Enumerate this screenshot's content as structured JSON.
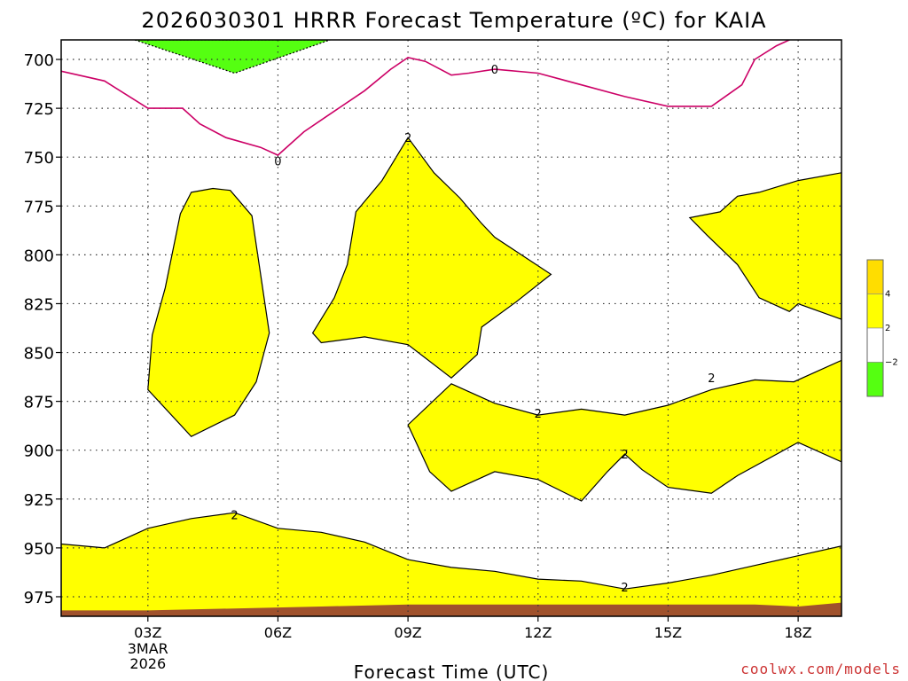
{
  "chart_data": {
    "type": "contour",
    "title": "2026030301 HRRR Forecast Temperature (ºC) for KAIA",
    "xlabel": "Forecast Time (UTC)",
    "watermark": "coolwx.com/models",
    "x_range": [
      1,
      19
    ],
    "y_range": [
      690,
      985
    ],
    "x_ticks": [
      {
        "x": 3,
        "label": "03Z",
        "sub": [
          "3MAR",
          "2026"
        ]
      },
      {
        "x": 6,
        "label": "06Z"
      },
      {
        "x": 9,
        "label": "09Z"
      },
      {
        "x": 12,
        "label": "12Z"
      },
      {
        "x": 15,
        "label": "15Z"
      },
      {
        "x": 18,
        "label": "18Z"
      }
    ],
    "y_ticks": [
      700,
      725,
      750,
      775,
      800,
      825,
      850,
      875,
      900,
      925,
      950,
      975
    ],
    "colors": {
      "cold": "#55ff11",
      "warm": "#ffff00",
      "hot": "#ffdd00",
      "ground": "#a0522d",
      "zero_line": "#cc0066"
    },
    "legend": [
      {
        "color": "#ffdd00",
        "label": "4"
      },
      {
        "color": "#ffff00",
        "label": "2"
      },
      {
        "color": "#ffffff",
        "label": "−2"
      },
      {
        "color": "#55ff11",
        "label": ""
      }
    ],
    "regions": [
      {
        "name": "cold-region",
        "color": "cold",
        "dashed": true,
        "points": [
          [
            2.7,
            690
          ],
          [
            5.0,
            707
          ],
          [
            7.2,
            690
          ]
        ]
      },
      {
        "name": "warm-blob-a",
        "color": "warm",
        "points": [
          [
            4.0,
            768
          ],
          [
            4.5,
            766
          ],
          [
            4.9,
            767
          ],
          [
            5.4,
            780
          ],
          [
            5.6,
            810
          ],
          [
            5.8,
            840
          ],
          [
            5.5,
            865
          ],
          [
            5.0,
            882
          ],
          [
            4.0,
            893
          ],
          [
            3.0,
            869
          ],
          [
            3.1,
            841
          ],
          [
            3.4,
            817
          ],
          [
            3.75,
            779
          ]
        ]
      },
      {
        "name": "warm-blob-b",
        "color": "warm",
        "points": [
          [
            9.0,
            740
          ],
          [
            9.6,
            758
          ],
          [
            10.2,
            771
          ],
          [
            10.7,
            784
          ],
          [
            11.0,
            791
          ],
          [
            12.3,
            810
          ],
          [
            11.5,
            824
          ],
          [
            10.7,
            837
          ],
          [
            10.6,
            851
          ],
          [
            10.0,
            863
          ],
          [
            9.0,
            846
          ],
          [
            8.0,
            842
          ],
          [
            7.0,
            845
          ],
          [
            6.8,
            840
          ],
          [
            7.3,
            822
          ],
          [
            7.6,
            805
          ],
          [
            7.8,
            778
          ],
          [
            8.4,
            762
          ]
        ]
      },
      {
        "name": "warm-blob-c",
        "color": "warm",
        "points": [
          [
            19,
            758
          ],
          [
            18.0,
            762
          ],
          [
            17.1,
            768
          ],
          [
            16.6,
            770
          ],
          [
            16.2,
            778
          ],
          [
            15.5,
            781
          ],
          [
            15.9,
            790
          ],
          [
            16.6,
            805
          ],
          [
            17.1,
            822
          ],
          [
            17.8,
            829
          ],
          [
            18.0,
            825
          ],
          [
            19,
            833
          ]
        ]
      },
      {
        "name": "warm-band-d",
        "color": "warm",
        "points": [
          [
            10.0,
            866
          ],
          [
            11.0,
            876
          ],
          [
            12.0,
            882
          ],
          [
            13.0,
            879
          ],
          [
            14.0,
            882
          ],
          [
            15.0,
            877
          ],
          [
            16.0,
            869
          ],
          [
            17.0,
            864
          ],
          [
            17.9,
            865
          ],
          [
            19,
            854
          ],
          [
            19,
            906
          ],
          [
            18.0,
            896
          ],
          [
            16.6,
            913
          ],
          [
            16.0,
            922
          ],
          [
            15.0,
            919
          ],
          [
            14.4,
            910
          ],
          [
            14.0,
            902
          ],
          [
            13.6,
            911
          ],
          [
            13.0,
            926
          ],
          [
            12.0,
            915
          ],
          [
            11.0,
            911
          ],
          [
            10.0,
            921
          ],
          [
            9.5,
            911
          ],
          [
            9.0,
            887
          ]
        ]
      },
      {
        "name": "warm-layer-e",
        "color": "warm",
        "points": [
          [
            1,
            948
          ],
          [
            2.0,
            950
          ],
          [
            3.0,
            940
          ],
          [
            4.0,
            935
          ],
          [
            5.0,
            932
          ],
          [
            6.0,
            940
          ],
          [
            7.0,
            942
          ],
          [
            8.0,
            947
          ],
          [
            9.0,
            956
          ],
          [
            10.0,
            960
          ],
          [
            11.0,
            962
          ],
          [
            12.0,
            966
          ],
          [
            13.0,
            967
          ],
          [
            14.0,
            971
          ],
          [
            15.0,
            968
          ],
          [
            16.0,
            964
          ],
          [
            17.0,
            959
          ],
          [
            18.0,
            954
          ],
          [
            19,
            949
          ],
          [
            19,
            985
          ],
          [
            1,
            985
          ]
        ]
      },
      {
        "name": "ground",
        "color": "ground",
        "points": [
          [
            1,
            982
          ],
          [
            3.0,
            982
          ],
          [
            5.0,
            981
          ],
          [
            7.0,
            980
          ],
          [
            9.0,
            979
          ],
          [
            12.0,
            979
          ],
          [
            15.0,
            979
          ],
          [
            17.0,
            979
          ],
          [
            18.0,
            980
          ],
          [
            19,
            978
          ],
          [
            19,
            990
          ],
          [
            1,
            990
          ]
        ]
      }
    ],
    "zero_line": {
      "points": [
        [
          1,
          706
        ],
        [
          2,
          711
        ],
        [
          3,
          725
        ],
        [
          3.8,
          725
        ],
        [
          4.2,
          733
        ],
        [
          4.8,
          740
        ],
        [
          5.6,
          745
        ],
        [
          6.0,
          749
        ],
        [
          6.6,
          737
        ],
        [
          7.2,
          728
        ],
        [
          8.0,
          716
        ],
        [
          8.6,
          705
        ],
        [
          9.0,
          699
        ],
        [
          9.4,
          701
        ],
        [
          10.0,
          708
        ],
        [
          10.4,
          707
        ],
        [
          11.0,
          705
        ],
        [
          12.0,
          707
        ],
        [
          13.0,
          713
        ],
        [
          14.0,
          719
        ],
        [
          15.0,
          724
        ],
        [
          16.0,
          724
        ],
        [
          16.7,
          713
        ],
        [
          17.0,
          700
        ],
        [
          17.5,
          693
        ],
        [
          17.8,
          690
        ]
      ]
    },
    "contour_labels": [
      {
        "value": "0",
        "x": 6.0,
        "y": 752
      },
      {
        "value": "0",
        "x": 11.0,
        "y": 705
      },
      {
        "value": "2",
        "x": 9.0,
        "y": 740
      },
      {
        "value": "2",
        "x": 5.0,
        "y": 933
      },
      {
        "value": "2",
        "x": 12.0,
        "y": 881
      },
      {
        "value": "2",
        "x": 14.0,
        "y": 902
      },
      {
        "value": "2",
        "x": 14.0,
        "y": 970
      },
      {
        "value": "2",
        "x": 16.0,
        "y": 863
      }
    ]
  }
}
